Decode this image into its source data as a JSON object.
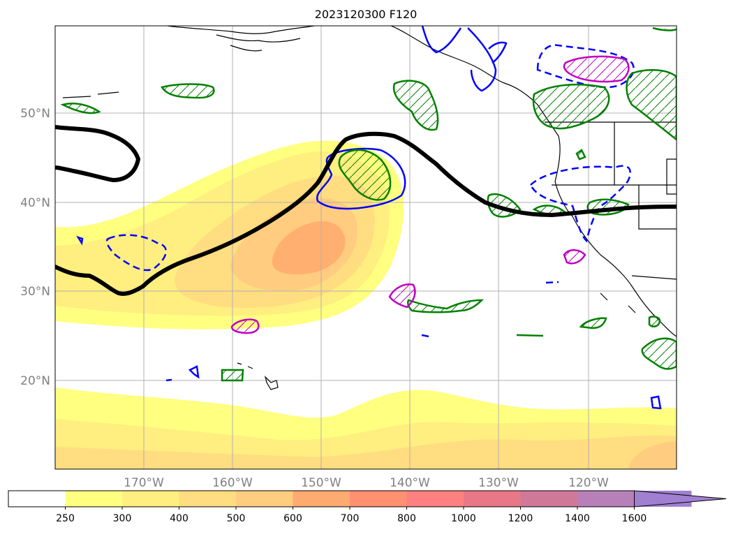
{
  "title": "2023120300 F120",
  "map": {
    "lat_labels": [
      "50°N",
      "40°N",
      "30°N",
      "20°N"
    ],
    "lon_labels": [
      "170°W",
      "160°W",
      "150°W",
      "140°W",
      "130°W",
      "120°W"
    ],
    "gridlines": true
  },
  "colorbar": {
    "ticks": [
      "250",
      "300",
      "400",
      "500",
      "600",
      "700",
      "800",
      "1000",
      "1200",
      "1400",
      "1600"
    ],
    "colors": [
      "#ffffff",
      "#ffff80",
      "#ffee80",
      "#ffdd80",
      "#ffcc80",
      "#ffaa70",
      "#ff9070",
      "#ff8080",
      "#e87888",
      "#d07898",
      "#b880b8",
      "#a080d0"
    ],
    "extend": "max"
  },
  "contour_colors": {
    "jet_line": "#000000",
    "blue_contour": "#0000ff",
    "green_hatched": "#008000",
    "magenta_hatched": "#c000c0"
  }
}
